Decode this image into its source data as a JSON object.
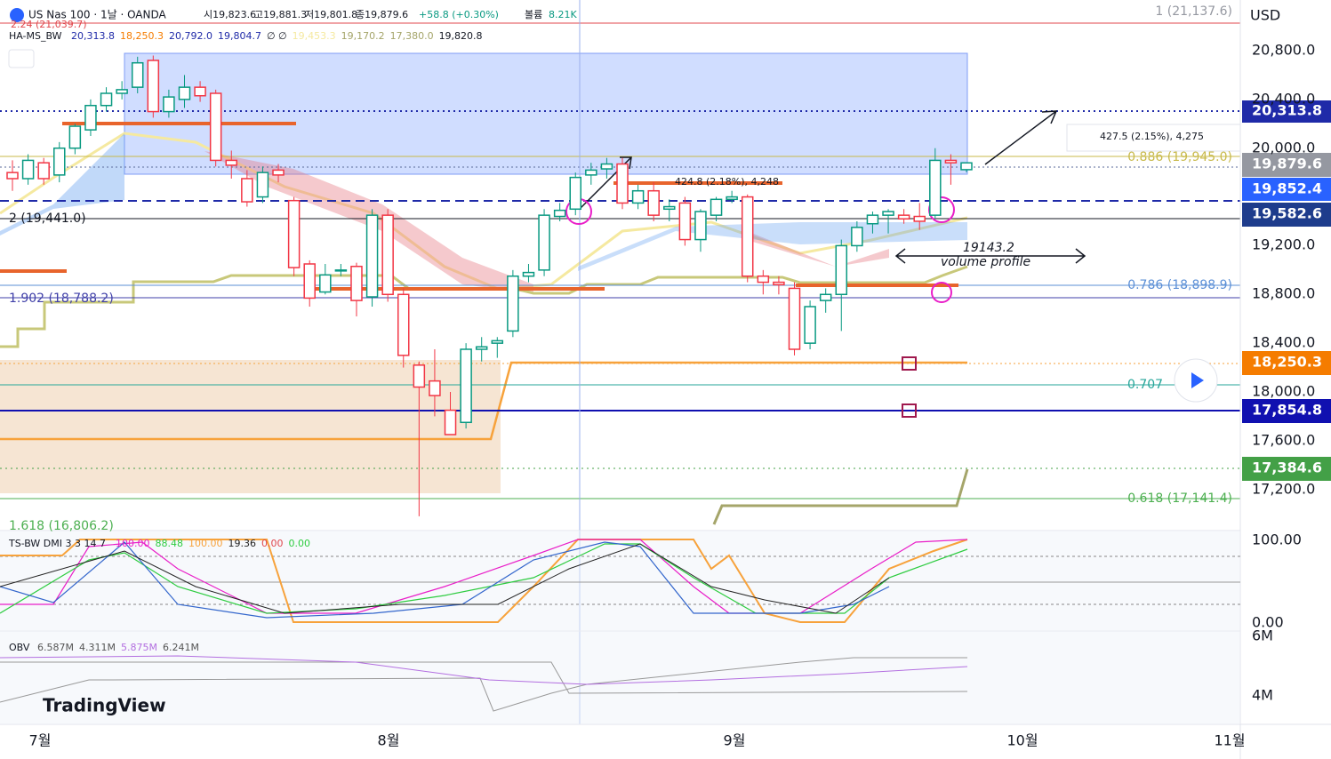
{
  "header": {
    "symbol": "US Nas 100 · 1날 · OANDA",
    "open": "시19,823.6",
    "high": "고19,881.3",
    "low": "저19,801.8",
    "close": "종19,879.6",
    "change": "+58.8 (+0.30%)",
    "volume_label": "볼륨",
    "volume": "8.21K",
    "ext_label": "2.24 (21,039.7)",
    "indicator": "HA-MS_BW",
    "indicator_values": [
      "20,313.8",
      "18,250.3",
      "20,792.0",
      "19,804.7",
      "∅ ∅",
      "19,453.3",
      "19,170.2",
      "17,380.0",
      "19,820.8"
    ]
  },
  "currency": "USD",
  "price_axis": [
    "20,800.0",
    "20,400.0",
    "20,000.0",
    "19,200.0",
    "18,800.0",
    "18,400.0",
    "18,000.0",
    "17,600.0",
    "17,200.0"
  ],
  "badges": [
    "20,313.8",
    "19,879.6",
    "19,852.4",
    "19,582.6",
    "18,250.3",
    "17,854.8",
    "17,384.6"
  ],
  "fib_labels": [
    "1 (21,137.6)",
    "0.886 (19,945.0)",
    "0.786 (18,898.9)",
    "0.707",
    "0.618 (17,141.4)"
  ],
  "ext_labels": [
    "2 (19,441.0)",
    "1.902 (18,788.2)",
    "1.618 (16,806.2)"
  ],
  "annotations": [
    "427.5 (2.15%), 4,275",
    "424.8 (2.18%), 4,248",
    "19143.2",
    "volume profile"
  ],
  "dmi": {
    "title": "TS-BW DMI 3 3 14 7",
    "values": [
      "100.00",
      "88.48",
      "100.00",
      "19.36",
      "0.00",
      "0.00"
    ],
    "axis": [
      "100.00",
      "0.00"
    ]
  },
  "obv": {
    "title": "OBV",
    "values": [
      "6.587M",
      "4.311M",
      "5.875M",
      "6.241M"
    ],
    "axis": [
      "6M",
      "4M"
    ]
  },
  "time_axis": [
    "7월",
    "8월",
    "9월",
    "10월",
    "11월"
  ],
  "brand": "TradingView",
  "candles": {
    "up_color": "#089981",
    "down_color": "#f23645",
    "open": [
      19800,
      19750,
      19880,
      19780,
      20000,
      20150,
      20350,
      20450,
      20500,
      20720,
      20300,
      20400,
      20500,
      20450,
      19900,
      19750,
      19600,
      19820,
      19570,
      19050,
      18820,
      19000,
      19030,
      18780,
      19450,
      18800,
      18220,
      18090,
      17850,
      17750,
      18350,
      18400,
      18500,
      18950,
      19000,
      19440,
      19500,
      19780,
      19830,
      19870,
      19550,
      19650,
      19500,
      19550,
      19250,
      19450,
      19580,
      19600,
      18950,
      18900,
      18850,
      18400,
      18750,
      18800,
      19200,
      19380,
      19450,
      19450,
      19440,
      19450,
      19900,
      19823.6
    ],
    "high": [
      19900,
      19950,
      19920,
      20050,
      20200,
      20400,
      20500,
      20550,
      20750,
      20760,
      20480,
      20600,
      20550,
      20480,
      19980,
      19820,
      19850,
      19870,
      19600,
      19080,
      19050,
      19050,
      19060,
      19500,
      19500,
      18850,
      18250,
      18350,
      18000,
      18400,
      18450,
      18450,
      19000,
      19050,
      19500,
      19550,
      19800,
      19880,
      19920,
      19920,
      19700,
      19720,
      19580,
      19600,
      19500,
      19600,
      19650,
      19620,
      19000,
      18950,
      18900,
      18750,
      18850,
      19250,
      19400,
      19480,
      19500,
      19500,
      19550,
      20000,
      19950,
      19881.3
    ],
    "low": [
      19650,
      19700,
      19700,
      19720,
      19950,
      20100,
      20300,
      20400,
      20450,
      20250,
      20250,
      20330,
      20380,
      19850,
      19750,
      19520,
      19550,
      19720,
      18950,
      18700,
      18800,
      18950,
      18620,
      18700,
      18740,
      18200,
      16980,
      17800,
      17650,
      17700,
      18250,
      18280,
      18450,
      18900,
      18950,
      19400,
      19450,
      19700,
      19750,
      19500,
      19500,
      19400,
      19400,
      19200,
      19150,
      19400,
      19550,
      18900,
      18800,
      18800,
      18300,
      18350,
      18650,
      18500,
      19150,
      19300,
      19300,
      19380,
      19330,
      19420,
      19700,
      19801.8
    ],
    "close": [
      19750,
      19900,
      19750,
      20000,
      20180,
      20350,
      20450,
      20480,
      20700,
      20300,
      20420,
      20500,
      20430,
      19900,
      19860,
      19560,
      19800,
      19780,
      19020,
      18770,
      18960,
      19000,
      18750,
      19450,
      18800,
      18300,
      18040,
      17970,
      17650,
      18350,
      18370,
      18420,
      18950,
      18980,
      19450,
      19490,
      19760,
      19820,
      19870,
      19550,
      19650,
      19450,
      19520,
      19250,
      19480,
      19580,
      19600,
      18950,
      18900,
      18880,
      18350,
      18700,
      18800,
      19200,
      19350,
      19450,
      19480,
      19420,
      19400,
      19900,
      19880,
      19879.6
    ]
  }
}
